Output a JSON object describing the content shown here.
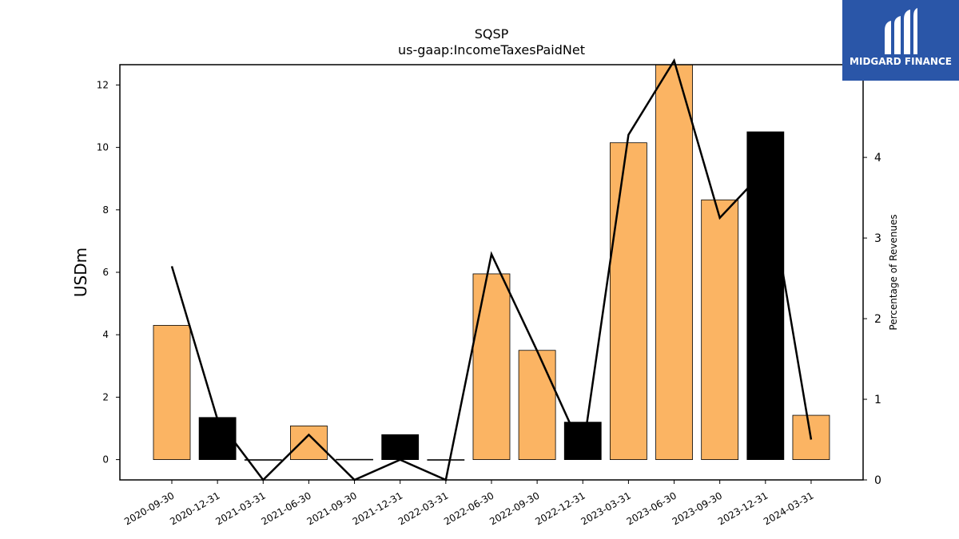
{
  "brand": {
    "name": "MIDGARD FINANCE",
    "color": "#2a56a8",
    "icon": "midgard-logo-icon"
  },
  "chart_data": {
    "type": "bar",
    "title": "SQSP",
    "subtitle": "us-gaap:IncomeTaxesPaidNet",
    "ylabel": "USDm",
    "y2label": "Percentage of Revenues",
    "categories": [
      "2020-09-30",
      "2020-12-31",
      "2021-03-31",
      "2021-06-30",
      "2021-09-30",
      "2021-12-31",
      "2022-03-31",
      "2022-06-30",
      "2022-09-30",
      "2022-12-31",
      "2023-03-31",
      "2023-06-30",
      "2023-09-30",
      "2023-12-31",
      "2024-03-31"
    ],
    "series": [
      {
        "type": "bar",
        "axis": "left",
        "values": [
          4.3,
          1.35,
          -0.02,
          1.08,
          0.01,
          0.8,
          -0.01,
          5.95,
          3.5,
          1.2,
          10.15,
          12.7,
          8.32,
          10.5,
          1.42
        ],
        "colors": [
          "#fbb463",
          "#000000",
          "#fbb463",
          "#fbb463",
          "#fbb463",
          "#000000",
          "#fbb463",
          "#fbb463",
          "#fbb463",
          "#000000",
          "#fbb463",
          "#fbb463",
          "#fbb463",
          "#000000",
          "#fbb463"
        ]
      },
      {
        "type": "line",
        "axis": "right",
        "values": [
          2.65,
          0.75,
          0.0,
          0.56,
          0.0,
          0.25,
          0.0,
          2.8,
          1.6,
          0.35,
          4.28,
          5.2,
          3.25,
          3.85,
          0.5
        ],
        "color": "#000000"
      }
    ],
    "ylim": [
      -0.65,
      12.65
    ],
    "y2lim": [
      0,
      5.15
    ],
    "yticks": [
      0,
      2,
      4,
      6,
      8,
      10,
      12
    ],
    "y2ticks": [
      0,
      1,
      2,
      3,
      4
    ],
    "grid": false,
    "legend": "none"
  }
}
